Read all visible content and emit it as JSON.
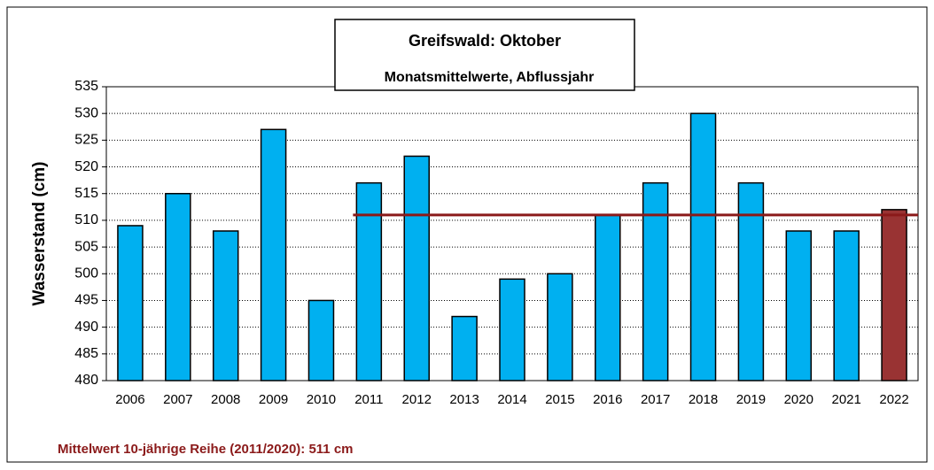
{
  "chart_data": {
    "type": "bar",
    "title": "Greifswald: Oktober",
    "subtitle": "Monatsmittelwerte, Abflussjahr",
    "y_label": "Wasserstand (cm)",
    "annotation": "Mittelwert 10-jährige Reihe (2011/2020): 511 cm",
    "categories": [
      "2006",
      "2007",
      "2008",
      "2009",
      "2010",
      "2011",
      "2012",
      "2013",
      "2014",
      "2015",
      "2016",
      "2017",
      "2018",
      "2019",
      "2020",
      "2021",
      "2022"
    ],
    "values": [
      509,
      515,
      508,
      527,
      495,
      517,
      522,
      492,
      499,
      500,
      511,
      517,
      530,
      517,
      508,
      508,
      512
    ],
    "colors": [
      "#00b0f0",
      "#00b0f0",
      "#00b0f0",
      "#00b0f0",
      "#00b0f0",
      "#00b0f0",
      "#00b0f0",
      "#00b0f0",
      "#00b0f0",
      "#00b0f0",
      "#00b0f0",
      "#00b0f0",
      "#00b0f0",
      "#00b0f0",
      "#00b0f0",
      "#00b0f0",
      "#993333"
    ],
    "mean_line": {
      "value": 511,
      "start": "2011",
      "color": "#8b1a1a"
    },
    "ylim": [
      480,
      535
    ],
    "yticks": [
      480,
      485,
      490,
      495,
      500,
      505,
      510,
      515,
      520,
      525,
      530,
      535
    ],
    "grid": true
  }
}
